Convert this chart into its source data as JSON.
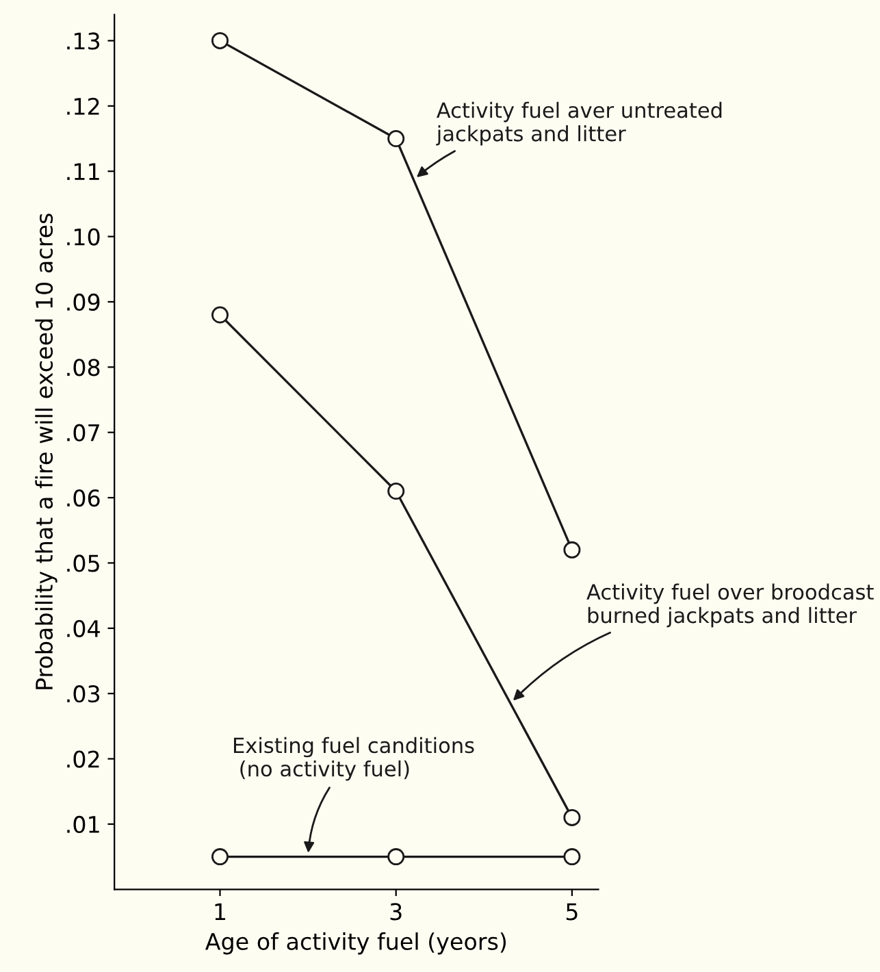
{
  "chart_data": {
    "type": "line",
    "xlabel": "Age of activity fuel (yeors)",
    "ylabel": "Probability that a fire will exceed 10 acres",
    "x": [
      1,
      3,
      5
    ],
    "xlim": [
      -0.2,
      5.3
    ],
    "xticks": [
      1,
      3,
      5
    ],
    "ylim": [
      0,
      0.134
    ],
    "yticks": [
      {
        "value": 0.01,
        "label": ".01"
      },
      {
        "value": 0.02,
        "label": ".02"
      },
      {
        "value": 0.03,
        "label": ".03"
      },
      {
        "value": 0.04,
        "label": ".04"
      },
      {
        "value": 0.05,
        "label": ".05"
      },
      {
        "value": 0.06,
        "label": ".06"
      },
      {
        "value": 0.07,
        "label": ".07"
      },
      {
        "value": 0.08,
        "label": ".08"
      },
      {
        "value": 0.09,
        "label": ".09"
      },
      {
        "value": 0.1,
        "label": ".10"
      },
      {
        "value": 0.11,
        "label": ".11"
      },
      {
        "value": 0.12,
        "label": ".12"
      },
      {
        "value": 0.13,
        "label": ".13"
      }
    ],
    "series": [
      {
        "name": "Activity fuel aver untreated\njackpats and litter",
        "color": "#1a1a1a",
        "values": [
          0.13,
          0.115,
          0.052
        ]
      },
      {
        "name": "Activity fuel over broodcast\nburned jackpats and litter",
        "color": "#1a1a1a",
        "values": [
          0.088,
          0.061,
          0.011
        ]
      },
      {
        "name": "Existing fuel canditions\n (no activity fuel)",
        "color": "#1a1a1a",
        "values": [
          0.005,
          0.005,
          0.005
        ]
      }
    ],
    "marker": "circle",
    "line_style": "solid",
    "grid": false,
    "legend": false
  }
}
